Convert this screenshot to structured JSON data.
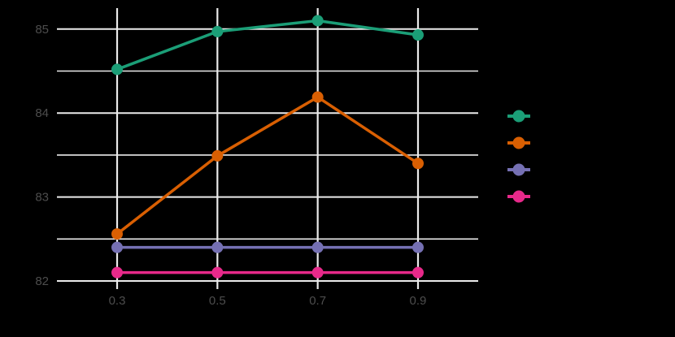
{
  "chart_data": {
    "type": "line",
    "title": "",
    "xlabel": "",
    "ylabel": "",
    "x": [
      0.3,
      0.5,
      0.7,
      0.9
    ],
    "x_tick_labels": [
      "0.3",
      "0.5",
      "0.7",
      "0.9"
    ],
    "y_tick_labels": [
      "82",
      "83",
      "84",
      "85"
    ],
    "ylim": [
      82,
      85.1
    ],
    "grid": true,
    "legend_position": "right",
    "series": [
      {
        "name": "",
        "color": "#1b9e77",
        "values": [
          84.52,
          84.97,
          85.1,
          84.93
        ]
      },
      {
        "name": "",
        "color": "#d95f02",
        "values": [
          82.56,
          83.49,
          84.19,
          83.4
        ]
      },
      {
        "name": "",
        "color": "#7570b3",
        "values": [
          82.4,
          82.4,
          82.4,
          82.4
        ]
      },
      {
        "name": "",
        "color": "#e7298a",
        "values": [
          82.1,
          82.1,
          82.1,
          82.1
        ]
      }
    ]
  },
  "colors": {
    "background": "#000000",
    "grid": "#ebebeb",
    "tick_text": "#4d4d4d"
  }
}
